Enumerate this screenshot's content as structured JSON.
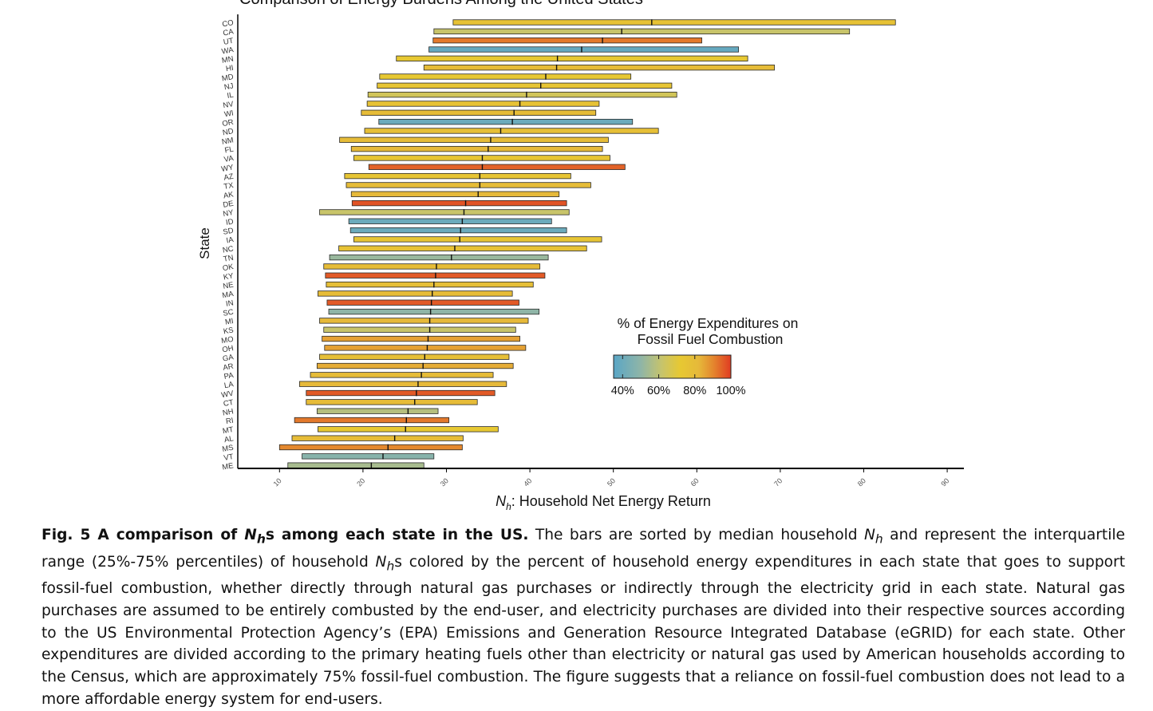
{
  "chart_data": {
    "type": "bar",
    "orientation": "horizontal",
    "range_bars": true,
    "title": "Comparison of Energy Burdens Among the United States",
    "xlabel_symbol": "N",
    "xlabel_sub": "h",
    "xlabel_text": ": Household Net Energy Return",
    "ylabel": "State",
    "xlim": [
      5,
      92
    ],
    "xticks": [
      10,
      20,
      30,
      40,
      50,
      60,
      70,
      80,
      90
    ],
    "grid": false,
    "legend": {
      "title_line1": "% of Energy Expenditures on",
      "title_line2": "Fossil Fuel Combustion",
      "placement": "center-right",
      "range": [
        35,
        100
      ],
      "ticks": [
        40,
        60,
        80,
        100
      ],
      "tick_labels": [
        "40%",
        "60%",
        "80%",
        "100%"
      ],
      "color_stops": [
        {
          "v": 35,
          "color": "#5aa6c6"
        },
        {
          "v": 50,
          "color": "#8fb5a7"
        },
        {
          "v": 62,
          "color": "#c8c46a"
        },
        {
          "v": 72,
          "color": "#e7c832"
        },
        {
          "v": 82,
          "color": "#e6b93a"
        },
        {
          "v": 90,
          "color": "#e4882e"
        },
        {
          "v": 100,
          "color": "#e03c22"
        }
      ]
    },
    "states": [
      {
        "state": "CO",
        "q1": 30.8,
        "median": 54.6,
        "q3": 83.8,
        "fossil_pct": 76
      },
      {
        "state": "CA",
        "q1": 28.5,
        "median": 51.0,
        "q3": 78.3,
        "fossil_pct": 62
      },
      {
        "state": "UT",
        "q1": 28.4,
        "median": 48.7,
        "q3": 60.6,
        "fossil_pct": 92
      },
      {
        "state": "WA",
        "q1": 27.9,
        "median": 46.2,
        "q3": 65.0,
        "fossil_pct": 38
      },
      {
        "state": "MN",
        "q1": 24.0,
        "median": 43.3,
        "q3": 66.1,
        "fossil_pct": 72
      },
      {
        "state": "HI",
        "q1": 27.3,
        "median": 43.2,
        "q3": 69.3,
        "fossil_pct": 80
      },
      {
        "state": "MD",
        "q1": 22.0,
        "median": 41.9,
        "q3": 52.1,
        "fossil_pct": 72
      },
      {
        "state": "NJ",
        "q1": 21.7,
        "median": 41.3,
        "q3": 57.0,
        "fossil_pct": 74
      },
      {
        "state": "IL",
        "q1": 20.6,
        "median": 39.6,
        "q3": 57.6,
        "fossil_pct": 65
      },
      {
        "state": "NV",
        "q1": 20.5,
        "median": 38.8,
        "q3": 48.3,
        "fossil_pct": 76
      },
      {
        "state": "WI",
        "q1": 19.8,
        "median": 38.1,
        "q3": 47.9,
        "fossil_pct": 80
      },
      {
        "state": "OR",
        "q1": 21.9,
        "median": 37.9,
        "q3": 52.3,
        "fossil_pct": 40
      },
      {
        "state": "ND",
        "q1": 20.2,
        "median": 36.5,
        "q3": 55.4,
        "fossil_pct": 78
      },
      {
        "state": "NM",
        "q1": 17.2,
        "median": 35.3,
        "q3": 49.4,
        "fossil_pct": 80
      },
      {
        "state": "FL",
        "q1": 18.6,
        "median": 35.0,
        "q3": 48.7,
        "fossil_pct": 82
      },
      {
        "state": "VA",
        "q1": 18.9,
        "median": 34.3,
        "q3": 49.6,
        "fossil_pct": 74
      },
      {
        "state": "WY",
        "q1": 20.7,
        "median": 34.3,
        "q3": 51.4,
        "fossil_pct": 95
      },
      {
        "state": "AZ",
        "q1": 17.8,
        "median": 34.0,
        "q3": 44.9,
        "fossil_pct": 74
      },
      {
        "state": "TX",
        "q1": 18.0,
        "median": 34.0,
        "q3": 47.3,
        "fossil_pct": 80
      },
      {
        "state": "AK",
        "q1": 18.6,
        "median": 33.8,
        "q3": 43.5,
        "fossil_pct": 82
      },
      {
        "state": "DE",
        "q1": 18.7,
        "median": 32.3,
        "q3": 44.4,
        "fossil_pct": 97
      },
      {
        "state": "NY",
        "q1": 14.8,
        "median": 32.1,
        "q3": 44.7,
        "fossil_pct": 62
      },
      {
        "state": "ID",
        "q1": 18.3,
        "median": 31.9,
        "q3": 42.6,
        "fossil_pct": 40
      },
      {
        "state": "SD",
        "q1": 18.5,
        "median": 31.7,
        "q3": 44.4,
        "fossil_pct": 40
      },
      {
        "state": "IA",
        "q1": 18.9,
        "median": 31.6,
        "q3": 48.6,
        "fossil_pct": 74
      },
      {
        "state": "NC",
        "q1": 17.1,
        "median": 31.0,
        "q3": 46.8,
        "fossil_pct": 76
      },
      {
        "state": "TN",
        "q1": 16.0,
        "median": 30.6,
        "q3": 42.2,
        "fossil_pct": 52
      },
      {
        "state": "OK",
        "q1": 15.3,
        "median": 28.8,
        "q3": 41.2,
        "fossil_pct": 80
      },
      {
        "state": "KY",
        "q1": 15.5,
        "median": 28.7,
        "q3": 41.8,
        "fossil_pct": 96
      },
      {
        "state": "NE",
        "q1": 15.6,
        "median": 28.5,
        "q3": 40.4,
        "fossil_pct": 78
      },
      {
        "state": "MA",
        "q1": 14.6,
        "median": 28.3,
        "q3": 37.9,
        "fossil_pct": 80
      },
      {
        "state": "IN",
        "q1": 15.7,
        "median": 28.2,
        "q3": 38.7,
        "fossil_pct": 96
      },
      {
        "state": "SC",
        "q1": 15.9,
        "median": 28.1,
        "q3": 41.1,
        "fossil_pct": 50
      },
      {
        "state": "MI",
        "q1": 14.8,
        "median": 28.0,
        "q3": 39.8,
        "fossil_pct": 82
      },
      {
        "state": "KS",
        "q1": 15.3,
        "median": 28.0,
        "q3": 38.3,
        "fossil_pct": 62
      },
      {
        "state": "MO",
        "q1": 15.1,
        "median": 27.8,
        "q3": 38.8,
        "fossil_pct": 86
      },
      {
        "state": "OH",
        "q1": 15.4,
        "median": 27.7,
        "q3": 39.5,
        "fossil_pct": 86
      },
      {
        "state": "GA",
        "q1": 14.8,
        "median": 27.4,
        "q3": 37.5,
        "fossil_pct": 78
      },
      {
        "state": "AR",
        "q1": 14.5,
        "median": 27.2,
        "q3": 38.0,
        "fossil_pct": 84
      },
      {
        "state": "PA",
        "q1": 13.7,
        "median": 27.0,
        "q3": 35.6,
        "fossil_pct": 80
      },
      {
        "state": "LA",
        "q1": 12.4,
        "median": 26.6,
        "q3": 37.2,
        "fossil_pct": 82
      },
      {
        "state": "WV",
        "q1": 13.2,
        "median": 26.4,
        "q3": 35.8,
        "fossil_pct": 96
      },
      {
        "state": "CT",
        "q1": 13.2,
        "median": 26.2,
        "q3": 33.7,
        "fossil_pct": 80
      },
      {
        "state": "NH",
        "q1": 14.5,
        "median": 25.4,
        "q3": 29.0,
        "fossil_pct": 58
      },
      {
        "state": "RI",
        "q1": 11.8,
        "median": 25.2,
        "q3": 30.3,
        "fossil_pct": 92
      },
      {
        "state": "MT",
        "q1": 14.6,
        "median": 25.1,
        "q3": 36.2,
        "fossil_pct": 72
      },
      {
        "state": "AL",
        "q1": 11.5,
        "median": 23.8,
        "q3": 32.0,
        "fossil_pct": 80
      },
      {
        "state": "MS",
        "q1": 10.0,
        "median": 23.0,
        "q3": 31.9,
        "fossil_pct": 90
      },
      {
        "state": "VT",
        "q1": 12.7,
        "median": 22.4,
        "q3": 28.5,
        "fossil_pct": 48
      },
      {
        "state": "ME",
        "q1": 11.0,
        "median": 21.0,
        "q3": 27.3,
        "fossil_pct": 55
      }
    ]
  },
  "caption": {
    "fig_label": "Fig. 5 A comparison of ",
    "fig_label_symbol": "N",
    "fig_label_sub": "h",
    "fig_label_end": "s among each state in the US.",
    "text1": " The bars are sorted by median household ",
    "sym1": "N",
    "sub1": "h",
    "text2": " and represent the interquartile range (25%-75% percentiles) of household ",
    "sym2": "N",
    "sub2": "h",
    "text3": "s colored by the percent of household energy expenditures in each state that goes to support fossil-fuel combustion, whether directly through natural gas purchases or indirectly through the electricity grid in each state. Natural gas purchases are assumed to be entirely combusted by the end-user, and electricity purchases are divided into their respective sources according to the US Environmental Protection Agency’s (EPA) Emissions and Generation Resource Integrated Database (eGRID) for each state. Other expenditures are divided according to the primary heating fuels other than electricity or natural gas used by American households according to the Census, which are approximately 75% fossil-fuel combustion. The figure suggests that a reliance on fossil-fuel combustion does not lead to a more affordable energy system for end-users."
  }
}
